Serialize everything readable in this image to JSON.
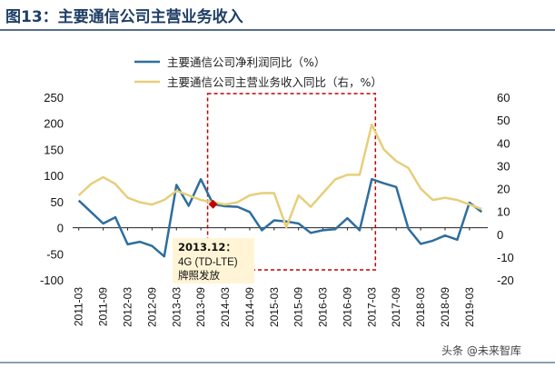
{
  "page": {
    "title": "图13：主要通信公司主营业务收入",
    "watermark": "头条 @未来智库"
  },
  "chart_data": {
    "type": "line",
    "x": [
      "2011-03",
      "2011-06",
      "2011-09",
      "2011-12",
      "2012-03",
      "2012-06",
      "2012-09",
      "2012-12",
      "2013-03",
      "2013-06",
      "2013-09",
      "2013-12",
      "2014-03",
      "2014-06",
      "2014-09",
      "2014-12",
      "2015-03",
      "2015-06",
      "2015-09",
      "2015-12",
      "2016-03",
      "2016-06",
      "2016-09",
      "2016-12",
      "2017-03",
      "2017-06",
      "2017-09",
      "2017-12",
      "2018-03",
      "2018-06",
      "2018-09",
      "2018-12",
      "2019-03",
      "2019-06"
    ],
    "xtick_labels": [
      "2011-03",
      "2011-09",
      "2012-03",
      "2012-09",
      "2013-03",
      "2013-09",
      "2014-03",
      "2014-09",
      "2015-03",
      "2015-09",
      "2016-03",
      "2016-09",
      "2017-03",
      "2017-09",
      "2018-03",
      "2018-09",
      "2019-03"
    ],
    "series": [
      {
        "name": "主要通信公司净利润同比（%）",
        "axis": "left",
        "color": "#2E6E9E",
        "values": [
          52,
          30,
          8,
          20,
          -32,
          -27,
          -35,
          -55,
          82,
          42,
          93,
          45,
          41,
          40,
          30,
          -5,
          14,
          12,
          8,
          -10,
          -5,
          -3,
          18,
          -5,
          93,
          85,
          78,
          -2,
          -31,
          -25,
          -15,
          -23,
          48,
          30
        ]
      },
      {
        "name": "主要通信公司主营业务收入同比（右，%）",
        "axis": "right",
        "color": "#E6CF7A",
        "values": [
          17,
          22,
          25,
          22,
          16,
          14,
          13,
          15,
          19,
          17,
          15,
          14,
          13,
          14,
          17,
          18,
          18,
          3,
          17,
          12,
          18,
          24,
          26,
          26,
          48,
          37,
          32,
          29,
          20,
          15,
          16,
          15,
          13,
          11
        ]
      }
    ],
    "ylim_left": [
      -100,
      250
    ],
    "yticks_left": [
      "250",
      "200",
      "150",
      "100",
      "50",
      "0",
      "-50",
      "-100"
    ],
    "ylim_right": [
      -20,
      60
    ],
    "yticks_right": [
      "60",
      "50",
      "40",
      "30",
      "20",
      "10",
      "0",
      "-10",
      "-20"
    ],
    "grid": false,
    "legend_position": "top",
    "highlight_box": {
      "x_start": "2013-12",
      "x_end": "2017-03",
      "color": "#C00000"
    },
    "annotation": {
      "x": "2013-12",
      "value": 45,
      "line1": "2013.12：",
      "line2": "4G (TD-LTE)",
      "line3": "牌照发放",
      "marker_color": "#C00000"
    }
  }
}
